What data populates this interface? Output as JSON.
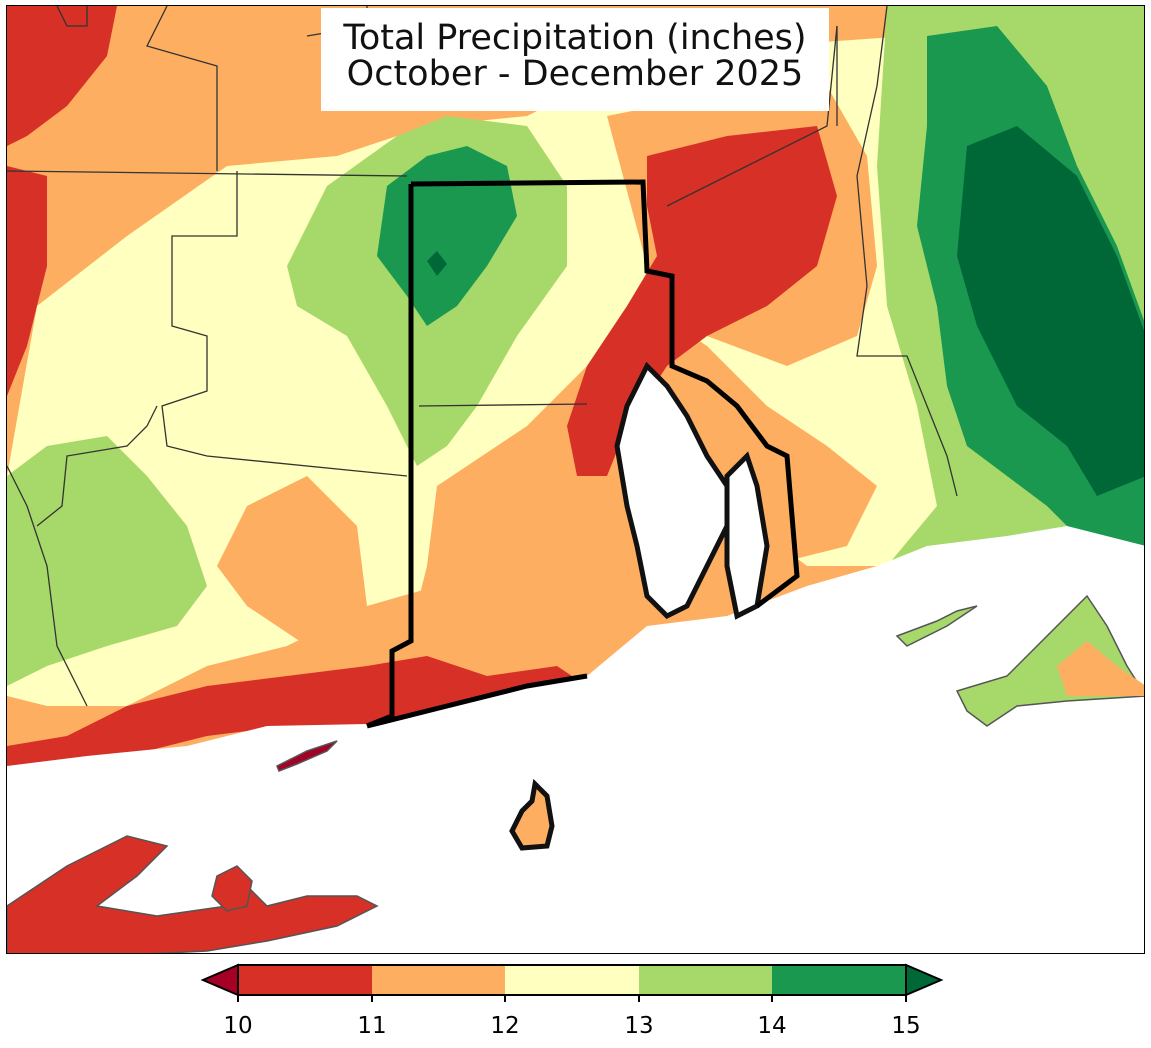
{
  "title": {
    "line1": "Total Precipitation (inches)",
    "line2": "October - December 2025"
  },
  "colorbar": {
    "ticks": [
      "10",
      "11",
      "12",
      "13",
      "14",
      "15"
    ],
    "bins": [
      {
        "range": "<10",
        "color": "#a50026"
      },
      {
        "range": "10-11",
        "color": "#d73027"
      },
      {
        "range": "11-12",
        "color": "#fdae61"
      },
      {
        "range": "12-13",
        "color": "#ffffbf"
      },
      {
        "range": "13-14",
        "color": "#a6d96a"
      },
      {
        "range": "14-15",
        "color": "#1a9850"
      },
      {
        "range": ">15",
        "color": "#006837"
      }
    ],
    "extend": "both",
    "orientation": "horizontal"
  },
  "map": {
    "region": "Southern New England (Rhode Island, eastern Connecticut, southeastern Massachusetts)",
    "boundary_color": "#000000",
    "water_color": "#ffffff"
  }
}
